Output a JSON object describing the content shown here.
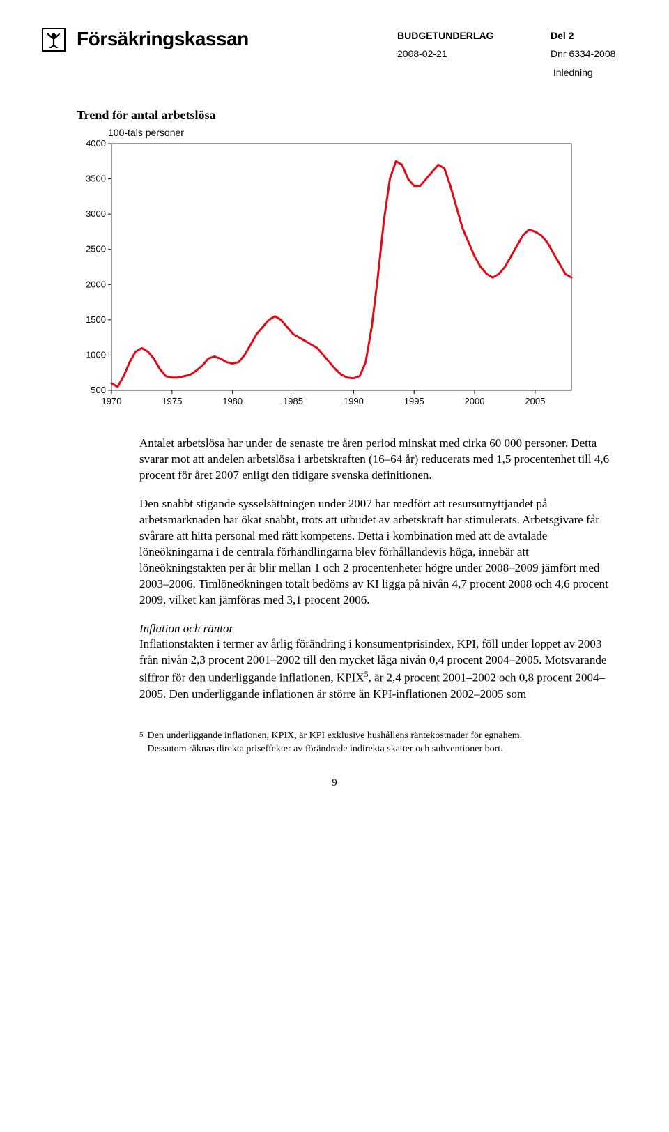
{
  "header": {
    "brand": "Försäkringskassan",
    "budget_label": "BUDGETUNDERLAG",
    "part_label": "Del 2",
    "date": "2008-02-21",
    "dnr": "Dnr 6334-2008",
    "section": "Inledning"
  },
  "chart": {
    "title": "Trend för antal arbetslösa",
    "subtitle": "100-tals personer",
    "type": "line",
    "line_color": "#e20a16",
    "line_width": 3,
    "background_color": "#ffffff",
    "ylim": [
      500,
      4000
    ],
    "ytick_step": 500,
    "yticks": [
      500,
      1000,
      1500,
      2000,
      2500,
      3000,
      3500,
      4000
    ],
    "xlim": [
      1970,
      2008
    ],
    "xticks": [
      1970,
      1975,
      1980,
      1985,
      1990,
      1995,
      2000,
      2005
    ],
    "axis_fontsize": 13,
    "grid": false,
    "data": [
      [
        1970,
        600
      ],
      [
        1970.5,
        550
      ],
      [
        1971,
        700
      ],
      [
        1971.5,
        900
      ],
      [
        1972,
        1050
      ],
      [
        1972.5,
        1100
      ],
      [
        1973,
        1050
      ],
      [
        1973.5,
        950
      ],
      [
        1974,
        800
      ],
      [
        1974.5,
        700
      ],
      [
        1975,
        680
      ],
      [
        1975.5,
        680
      ],
      [
        1976,
        700
      ],
      [
        1976.5,
        720
      ],
      [
        1977,
        780
      ],
      [
        1977.5,
        850
      ],
      [
        1978,
        950
      ],
      [
        1978.5,
        980
      ],
      [
        1979,
        950
      ],
      [
        1979.5,
        900
      ],
      [
        1980,
        880
      ],
      [
        1980.5,
        900
      ],
      [
        1981,
        1000
      ],
      [
        1981.5,
        1150
      ],
      [
        1982,
        1300
      ],
      [
        1982.5,
        1400
      ],
      [
        1983,
        1500
      ],
      [
        1983.5,
        1550
      ],
      [
        1984,
        1500
      ],
      [
        1984.5,
        1400
      ],
      [
        1985,
        1300
      ],
      [
        1985.5,
        1250
      ],
      [
        1986,
        1200
      ],
      [
        1986.5,
        1150
      ],
      [
        1987,
        1100
      ],
      [
        1987.5,
        1000
      ],
      [
        1988,
        900
      ],
      [
        1988.5,
        800
      ],
      [
        1989,
        720
      ],
      [
        1989.5,
        680
      ],
      [
        1990,
        670
      ],
      [
        1990.5,
        700
      ],
      [
        1991,
        900
      ],
      [
        1991.5,
        1400
      ],
      [
        1992,
        2100
      ],
      [
        1992.5,
        2900
      ],
      [
        1993,
        3500
      ],
      [
        1993.5,
        3750
      ],
      [
        1994,
        3700
      ],
      [
        1994.5,
        3500
      ],
      [
        1995,
        3400
      ],
      [
        1995.5,
        3400
      ],
      [
        1996,
        3500
      ],
      [
        1996.5,
        3600
      ],
      [
        1997,
        3700
      ],
      [
        1997.5,
        3650
      ],
      [
        1998,
        3400
      ],
      [
        1998.5,
        3100
      ],
      [
        1999,
        2800
      ],
      [
        1999.5,
        2600
      ],
      [
        2000,
        2400
      ],
      [
        2000.5,
        2250
      ],
      [
        2001,
        2150
      ],
      [
        2001.5,
        2100
      ],
      [
        2002,
        2150
      ],
      [
        2002.5,
        2250
      ],
      [
        2003,
        2400
      ],
      [
        2003.5,
        2550
      ],
      [
        2004,
        2700
      ],
      [
        2004.5,
        2780
      ],
      [
        2005,
        2750
      ],
      [
        2005.5,
        2700
      ],
      [
        2006,
        2600
      ],
      [
        2006.5,
        2450
      ],
      [
        2007,
        2300
      ],
      [
        2007.5,
        2150
      ],
      [
        2008,
        2100
      ]
    ]
  },
  "paragraphs": {
    "p1": "Antalet arbetslösa har under de senaste tre åren period minskat med cirka 60 000 personer. Detta svarar mot att andelen arbetslösa i arbetskraften (16–64 år) reducerats med 1,5 procentenhet till 4,6 procent för året 2007 enligt den tidigare svenska definitionen.",
    "p2": "Den snabbt stigande sysselsättningen under 2007 har medfört att resursutnyttjandet på arbetsmarknaden har ökat snabbt, trots att utbudet av arbetskraft har stimulerats. Arbetsgivare får svårare att hitta personal med rätt kompetens. Detta i kombination med att de avtalade löneökningarna i de centrala förhandlingarna blev förhållandevis höga, innebär att löneökningstakten per år blir mellan 1 och 2 procentenheter högre under 2008–2009 jämfört med 2003–2006. Timlöneökningen totalt bedöms av KI ligga på nivån 4,7 procent 2008 och 4,6 procent 2009, vilket kan jämföras med 3,1 procent 2006.",
    "p3_title": "Inflation och räntor",
    "p3": "Inflationstakten i termer av årlig förändring i konsumentprisindex, KPI, föll under loppet av 2003 från nivån 2,3 procent 2001–2002 till den mycket låga nivån 0,4 procent 2004–2005. Motsvarande siffror för den underliggande inflationen, KPIX",
    "p3_after_sup": ", är 2,4 procent 2001–2002 och 0,8 procent 2004–2005. Den underliggande inflationen är större än KPI-inflationen 2002–2005 som"
  },
  "footnote": {
    "num": "5",
    "text": "Den underliggande inflationen, KPIX, är KPI exklusive hushållens räntekostnader för egnahem.\nDessutom räknas direkta priseffekter av förändrade indirekta skatter och subventioner bort."
  },
  "page_number": "9"
}
